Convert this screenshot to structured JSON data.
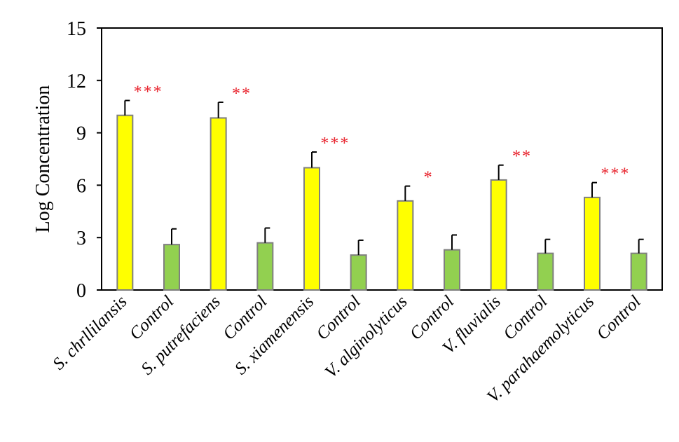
{
  "chart_data": {
    "type": "bar",
    "ylabel": "Log Concentration",
    "ylim": [
      0,
      15
    ],
    "yticks": [
      0,
      3,
      6,
      9,
      12,
      15
    ],
    "categories": [
      "S. chrllilansis",
      "Control",
      "S. putrefaciens",
      "Control",
      "S. xiamenensis",
      "Control",
      "V. alginolyticus",
      "Control",
      "V. fluvialis",
      "Control",
      "V. parahaemolyticus",
      "Control"
    ],
    "values": [
      10.0,
      2.6,
      9.85,
      2.7,
      7.0,
      2.0,
      5.1,
      2.3,
      6.3,
      2.1,
      5.3,
      2.1
    ],
    "errors": [
      0.85,
      0.9,
      0.9,
      0.85,
      0.9,
      0.85,
      0.85,
      0.85,
      0.85,
      0.8,
      0.85,
      0.8
    ],
    "significance": [
      "***",
      "",
      "**",
      "",
      "***",
      "",
      "*",
      "",
      "**",
      "",
      "***",
      ""
    ],
    "colors": {
      "treatment": "#ffff00",
      "control": "#92d050",
      "bar_border": "#7f7f7f",
      "significance": "#e8202a"
    },
    "grid": false,
    "legend": "none"
  }
}
